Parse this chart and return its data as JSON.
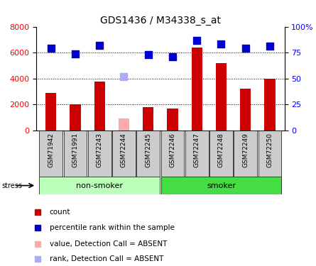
{
  "title": "GDS1436 / M34338_s_at",
  "samples": [
    "GSM71942",
    "GSM71991",
    "GSM72243",
    "GSM72244",
    "GSM72245",
    "GSM72246",
    "GSM72247",
    "GSM72248",
    "GSM72249",
    "GSM72250"
  ],
  "counts": [
    2900,
    2000,
    3750,
    0,
    1800,
    1700,
    6400,
    5200,
    3200,
    4000
  ],
  "counts_absent": [
    0,
    0,
    0,
    900,
    0,
    0,
    0,
    0,
    0,
    0
  ],
  "ranks": [
    79,
    74,
    82,
    0,
    73,
    71,
    87,
    83,
    79,
    81
  ],
  "ranks_absent": [
    0,
    0,
    0,
    52,
    0,
    0,
    0,
    0,
    0,
    0
  ],
  "absent_mask": [
    false,
    false,
    false,
    true,
    false,
    false,
    false,
    false,
    false,
    false
  ],
  "bar_color": "#cc0000",
  "bar_absent_color": "#ffaaaa",
  "dot_color": "#0000cc",
  "dot_absent_color": "#aaaaff",
  "ylim_left": [
    0,
    8000
  ],
  "ylim_right": [
    0,
    100
  ],
  "yticks_left": [
    0,
    2000,
    4000,
    6000,
    8000
  ],
  "ytick_labels_right": [
    "0",
    "25",
    "50",
    "75",
    "100%"
  ],
  "groups": [
    {
      "label": "non-smoker",
      "start": 0,
      "end": 4,
      "color": "#bbffbb"
    },
    {
      "label": "smoker",
      "start": 5,
      "end": 9,
      "color": "#44dd44"
    }
  ],
  "stress_label": "stress",
  "legend_items": [
    {
      "label": "count",
      "color": "#cc0000"
    },
    {
      "label": "percentile rank within the sample",
      "color": "#0000cc"
    },
    {
      "label": "value, Detection Call = ABSENT",
      "color": "#ffaaaa"
    },
    {
      "label": "rank, Detection Call = ABSENT",
      "color": "#aaaaff"
    }
  ],
  "bar_width": 0.45,
  "dot_size": 45
}
